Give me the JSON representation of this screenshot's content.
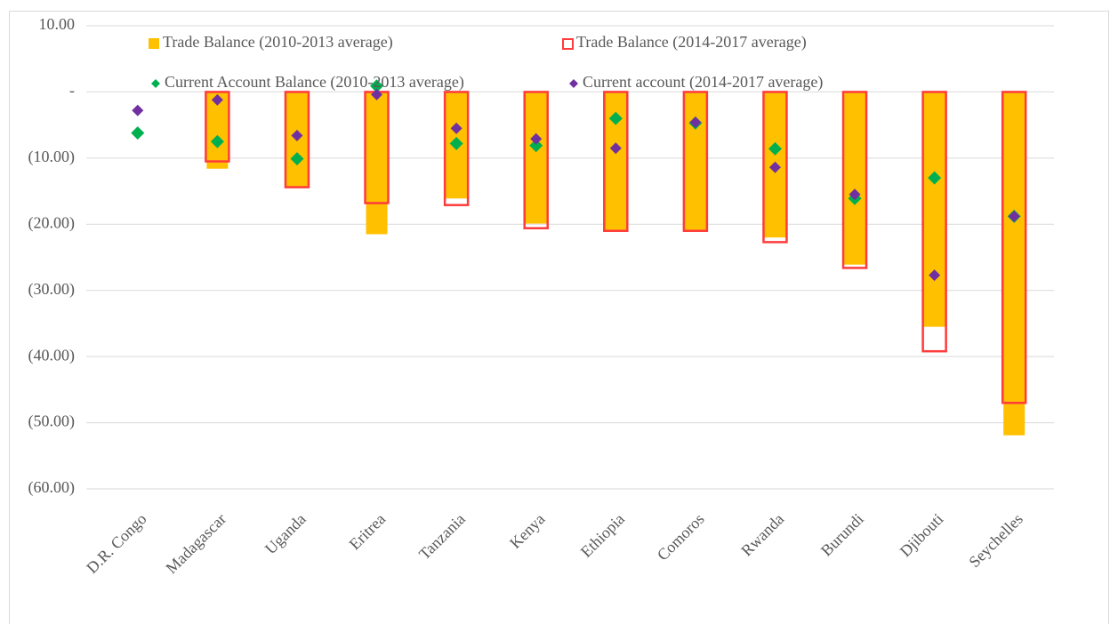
{
  "chart_data": {
    "type": "bar",
    "categories": [
      "D.R. Congo",
      "Madagascar",
      "Uganda",
      "Eritrea",
      "Tanzania",
      "Kenya",
      "Ethiopia",
      "Comoros",
      "Rwanda",
      "Burundi",
      "Djibouti",
      "Seychelles"
    ],
    "series": [
      {
        "name": "Trade Balance (2010-2013 average)",
        "type": "bar",
        "color": "#ffc000",
        "values": [
          null,
          -11.6,
          -14.5,
          -21.5,
          -16.1,
          -19.9,
          -21.0,
          -21.0,
          -22.0,
          -26.1,
          -35.5,
          -51.9
        ]
      },
      {
        "name": "Trade Balance (2014-2017 average)",
        "type": "bar-outline",
        "color": "#ff3b3b",
        "values": [
          null,
          -10.5,
          -14.4,
          -16.8,
          -17.1,
          -20.6,
          -21.0,
          -21.0,
          -22.7,
          -26.6,
          -39.2,
          -47.0
        ]
      },
      {
        "name": "Current Account Balance (2010-2013 average)",
        "type": "scatter",
        "color": "#00b050",
        "values": [
          -6.2,
          -7.5,
          -10.1,
          0.9,
          -7.8,
          -8.1,
          -4.0,
          -4.7,
          -8.6,
          -16.1,
          -13.0,
          -18.8
        ]
      },
      {
        "name": "Current account (2014-2017 average)",
        "type": "scatter",
        "color": "#7030a0",
        "values": [
          -2.8,
          -1.2,
          -6.6,
          -0.4,
          -5.5,
          -7.1,
          -8.5,
          -4.6,
          -11.4,
          -15.5,
          -27.7,
          -18.8
        ]
      }
    ],
    "ylim": [
      -60,
      10
    ],
    "yticks": [
      {
        "value": -60,
        "label": "(60.00)"
      },
      {
        "value": -50,
        "label": "(50.00)"
      },
      {
        "value": -40,
        "label": "(40.00)"
      },
      {
        "value": -30,
        "label": "(30.00)"
      },
      {
        "value": -20,
        "label": "(20.00)"
      },
      {
        "value": -10,
        "label": "(10.00)"
      },
      {
        "value": 0,
        "label": "-"
      },
      {
        "value": 10,
        "label": "10.00"
      }
    ],
    "grid": true
  }
}
